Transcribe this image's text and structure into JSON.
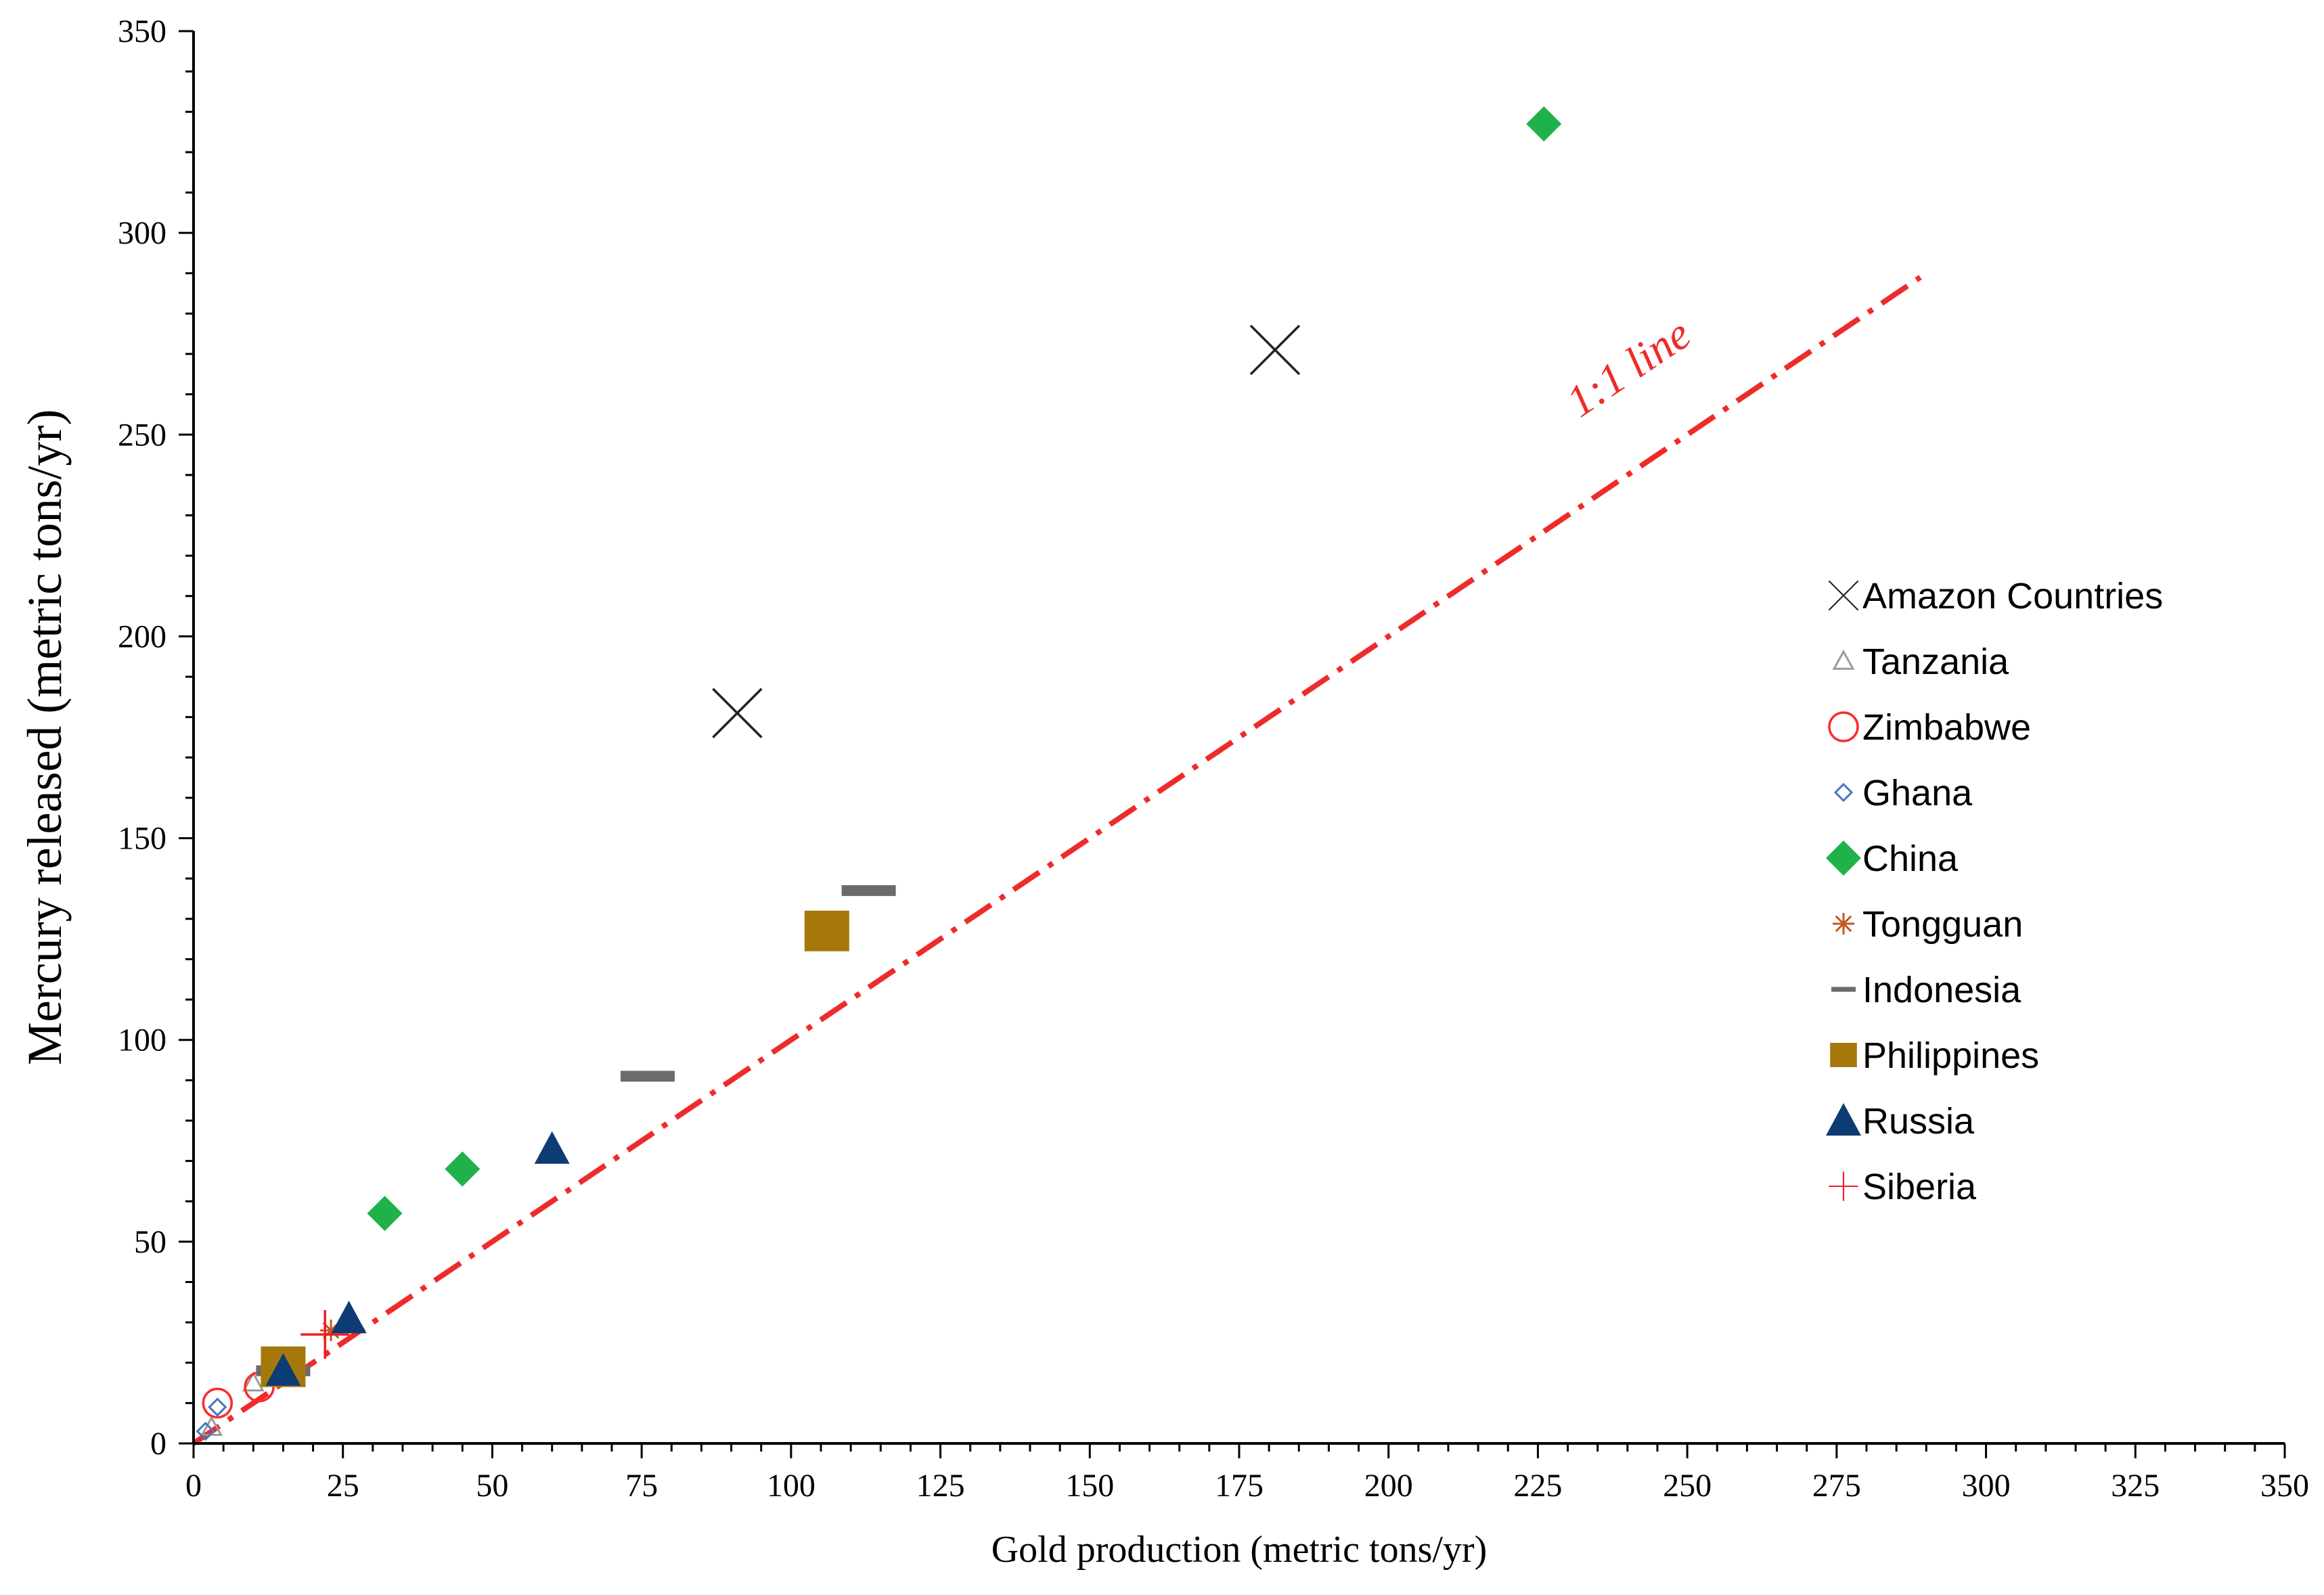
{
  "chart_data": {
    "type": "scatter",
    "title": "",
    "xlabel": "Gold production (metric tons/yr)",
    "ylabel": "Mercury released (metric tons/yr)",
    "xlim": [
      0,
      350
    ],
    "ylim": [
      0,
      350
    ],
    "xticks": [
      0,
      25,
      50,
      75,
      100,
      125,
      150,
      175,
      200,
      225,
      250,
      275,
      300,
      325,
      350
    ],
    "yticks": [
      0,
      50,
      100,
      150,
      200,
      250,
      300,
      350
    ],
    "grid": false,
    "legend_position": "right",
    "reference_line": {
      "label": "1:1 line",
      "x": [
        0,
        289
      ],
      "y": [
        0,
        289
      ],
      "color": "#ee2b2b",
      "style": "dash-dot"
    },
    "series": [
      {
        "name": "Amazon Countries",
        "marker": "x-cross",
        "color": "#222222",
        "points": [
          [
            91,
            181
          ],
          [
            181,
            271
          ]
        ]
      },
      {
        "name": "Tanzania",
        "marker": "triangle-open",
        "color": "#9a9a9a",
        "points": [
          [
            3,
            4
          ],
          [
            10,
            15
          ]
        ]
      },
      {
        "name": "Zimbabwe",
        "marker": "circle-open",
        "color": "#ff2a2a",
        "points": [
          [
            4,
            10
          ],
          [
            11,
            14
          ]
        ]
      },
      {
        "name": "Ghana",
        "marker": "diamond-open",
        "color": "#4a73c4",
        "points": [
          [
            2,
            3
          ],
          [
            4,
            9
          ]
        ]
      },
      {
        "name": "China",
        "marker": "diamond-filled",
        "color": "#1fb24a",
        "points": [
          [
            32,
            57
          ],
          [
            45,
            68
          ],
          [
            226,
            327
          ]
        ]
      },
      {
        "name": "Tongguan",
        "marker": "asterisk",
        "color": "#c4561c",
        "points": [
          [
            23,
            28
          ]
        ]
      },
      {
        "name": "Indonesia",
        "marker": "dash",
        "color": "#6b6b6b",
        "points": [
          [
            15,
            18
          ],
          [
            76,
            91
          ],
          [
            113,
            137
          ]
        ]
      },
      {
        "name": "Philippines",
        "marker": "square-filled",
        "color": "#a6780b",
        "points": [
          [
            15,
            19
          ],
          [
            106,
            127
          ]
        ]
      },
      {
        "name": "Russia",
        "marker": "triangle-filled",
        "color": "#0d3b73",
        "points": [
          [
            15,
            18
          ],
          [
            26,
            31
          ],
          [
            60,
            73
          ]
        ]
      },
      {
        "name": "Siberia",
        "marker": "plus",
        "color": "#ee1c24",
        "points": [
          [
            22,
            27
          ]
        ]
      }
    ]
  }
}
